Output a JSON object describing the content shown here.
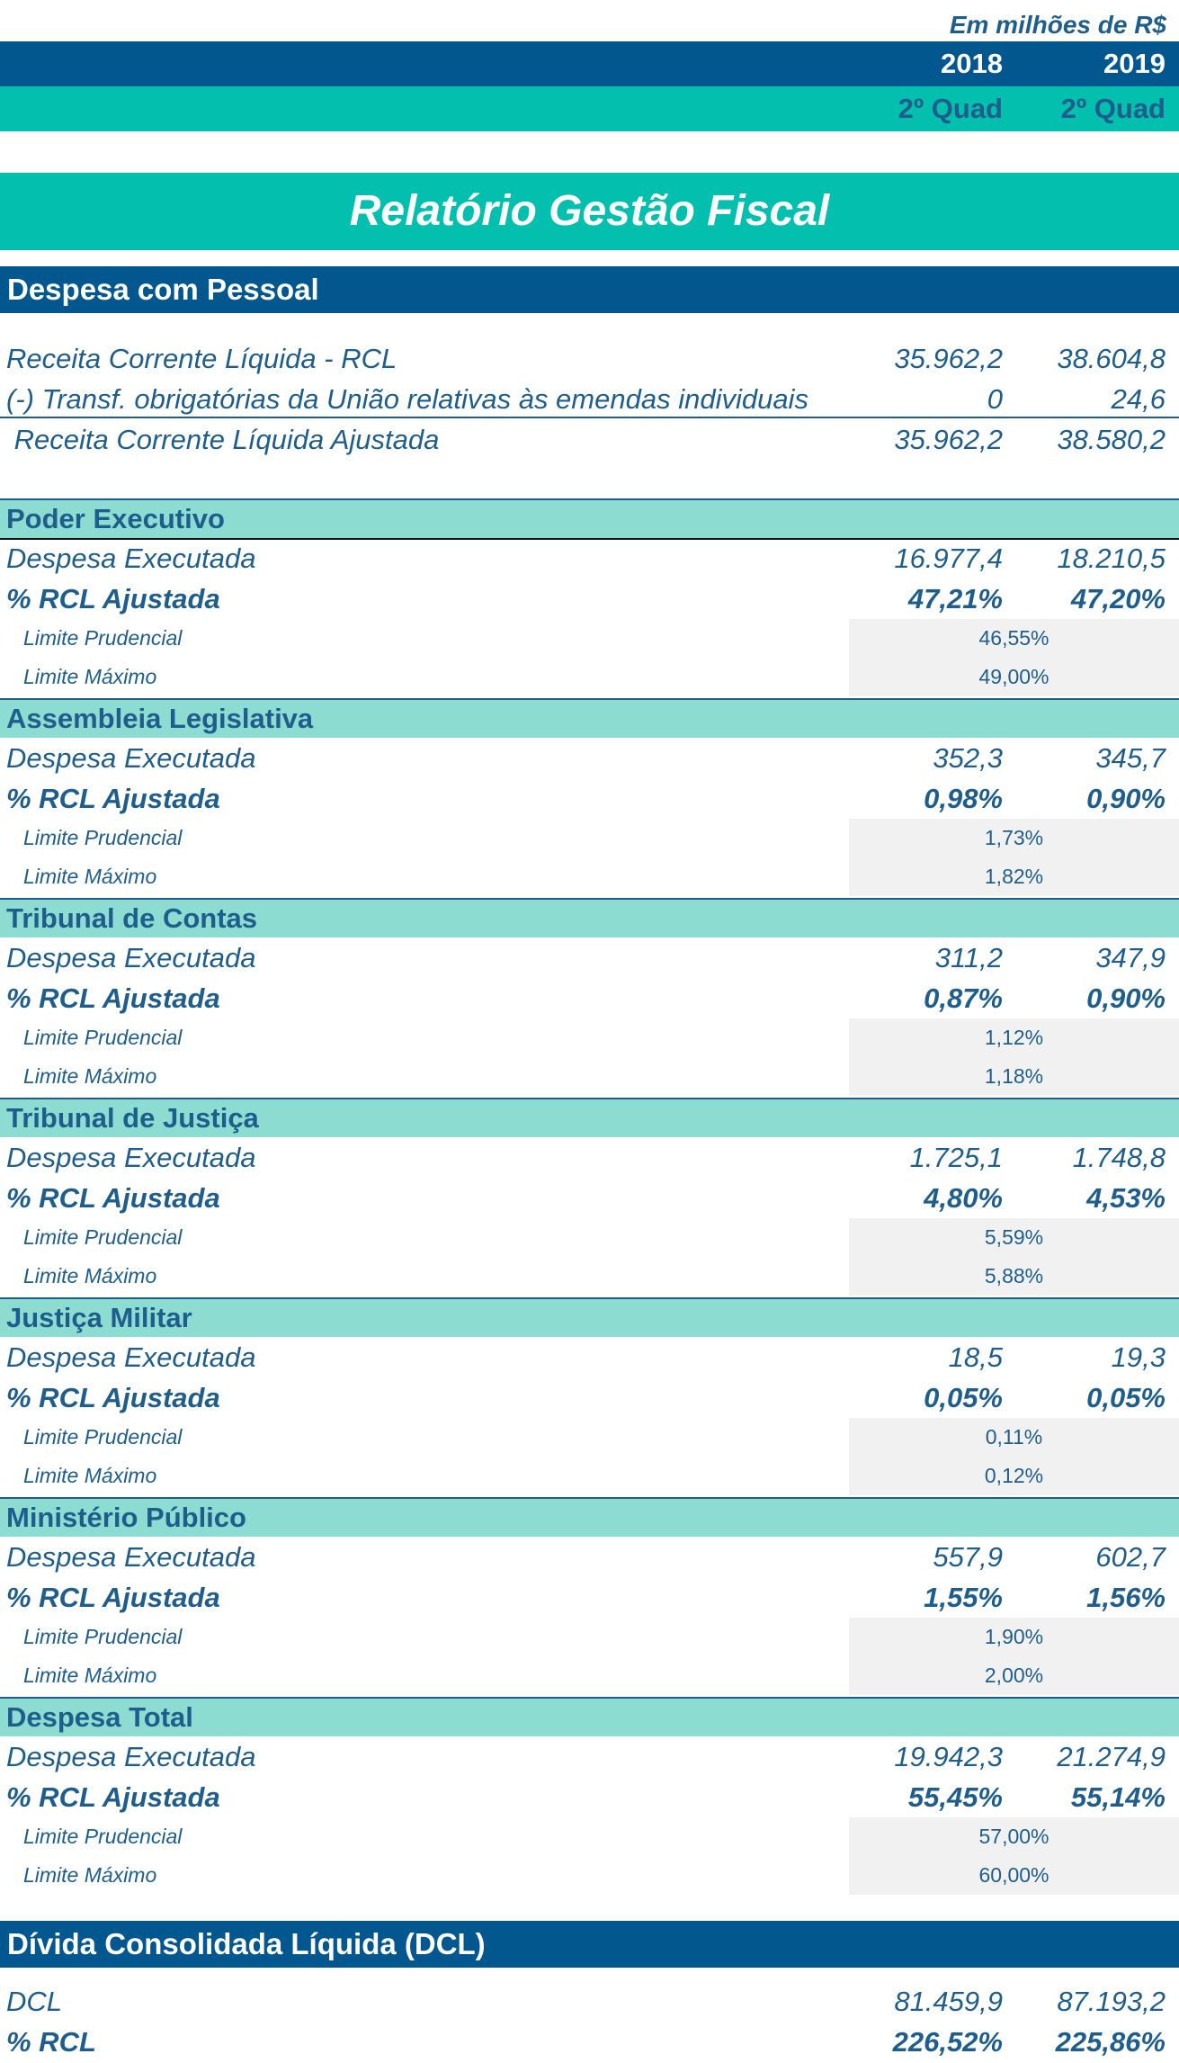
{
  "header": {
    "units": "Em milhões de R$",
    "years": [
      "2018",
      "2019"
    ],
    "periods": [
      "2º Quad",
      "2º Quad"
    ]
  },
  "title": "Relatório Gestão Fiscal",
  "pessoal": {
    "heading": "Despesa com Pessoal",
    "rcl": {
      "label": "Receita Corrente Líquida - RCL",
      "v2018": "35.962,2",
      "v2019": "38.604,8"
    },
    "transf": {
      "label": "(-) Transf. obrigatórias da União relativas às emendas individuais",
      "v2018": "0",
      "v2019": "24,6"
    },
    "rcl_ajustada": {
      "label": " Receita Corrente Líquida Ajustada",
      "v2018": "35.962,2",
      "v2019": "38.580,2"
    }
  },
  "row_labels": {
    "despesa": "Despesa Executada",
    "pct": "% RCL Ajustada",
    "prudencial": "Limite Prudencial",
    "maximo": "Limite Máximo"
  },
  "groups": [
    {
      "name": "Poder Executivo",
      "despesa_2018": "16.977,4",
      "despesa_2019": "18.210,5",
      "pct_2018": "47,21%",
      "pct_2019": "47,20%",
      "prudencial": "46,55%",
      "maximo": "49,00%"
    },
    {
      "name": "Assembleia Legislativa",
      "despesa_2018": "352,3",
      "despesa_2019": "345,7",
      "pct_2018": "0,98%",
      "pct_2019": "0,90%",
      "prudencial": "1,73%",
      "maximo": "1,82%"
    },
    {
      "name": "Tribunal de Contas",
      "despesa_2018": "311,2",
      "despesa_2019": "347,9",
      "pct_2018": "0,87%",
      "pct_2019": "0,90%",
      "prudencial": "1,12%",
      "maximo": "1,18%"
    },
    {
      "name": "Tribunal de Justiça",
      "despesa_2018": "1.725,1",
      "despesa_2019": "1.748,8",
      "pct_2018": "4,80%",
      "pct_2019": "4,53%",
      "prudencial": "5,59%",
      "maximo": "5,88%"
    },
    {
      "name": "Justiça Militar",
      "despesa_2018": "18,5",
      "despesa_2019": "19,3",
      "pct_2018": "0,05%",
      "pct_2019": "0,05%",
      "prudencial": "0,11%",
      "maximo": "0,12%"
    },
    {
      "name": "Ministério Público",
      "despesa_2018": "557,9",
      "despesa_2019": "602,7",
      "pct_2018": "1,55%",
      "pct_2019": "1,56%",
      "prudencial": "1,90%",
      "maximo": "2,00%"
    },
    {
      "name": "Despesa Total",
      "despesa_2018": "19.942,3",
      "despesa_2019": "21.274,9",
      "pct_2018": "55,45%",
      "pct_2019": "55,14%",
      "prudencial": "57,00%",
      "maximo": "60,00%"
    }
  ],
  "divida": {
    "heading": "Dívida Consolidada Líquida (DCL)",
    "dcl": {
      "label": "DCL",
      "v2018": "81.459,9",
      "v2019": "87.193,2"
    },
    "pct": {
      "label": "% RCL",
      "v2018": "226,52%",
      "v2019": "225,86%"
    }
  }
}
